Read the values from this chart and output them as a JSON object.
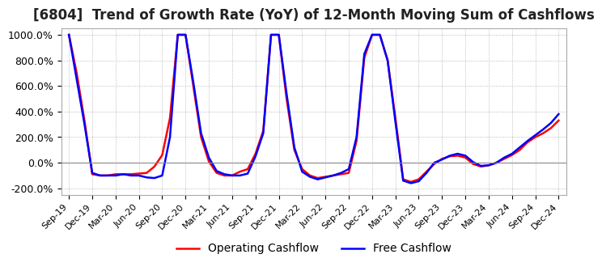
{
  "title": "[6804]  Trend of Growth Rate (YoY) of 12-Month Moving Sum of Cashflows",
  "title_fontsize": 12,
  "ylim": [
    -250,
    1050
  ],
  "yticks": [
    -200,
    0,
    200,
    400,
    600,
    800,
    1000
  ],
  "yticklabels": [
    "-200.0%",
    "0.0%",
    "200.0%",
    "400.0%",
    "600.0%",
    "800.0%",
    "1000.0%"
  ],
  "legend_labels": [
    "Operating Cashflow",
    "Free Cashflow"
  ],
  "legend_colors": [
    "#ff0000",
    "#0000ff"
  ],
  "line_width": 1.8,
  "background_color": "#ffffff",
  "grid_color": "#aaaaaa",
  "x_tick_labels": [
    "Sep-19",
    "Dec-19",
    "Mar-20",
    "Jun-20",
    "Sep-20",
    "Dec-20",
    "Mar-21",
    "Jun-21",
    "Sep-21",
    "Dec-21",
    "Mar-22",
    "Jun-22",
    "Sep-22",
    "Dec-22",
    "Mar-23",
    "Jun-23",
    "Sep-23",
    "Dec-23",
    "Mar-24",
    "Jun-24",
    "Sep-24",
    "Dec-24"
  ],
  "x_tick_positions": [
    0,
    3,
    6,
    9,
    12,
    15,
    18,
    21,
    24,
    27,
    30,
    33,
    36,
    39,
    42,
    45,
    48,
    51,
    54,
    57,
    60,
    63
  ],
  "operating_cashflow": [
    1000,
    700,
    330,
    -90,
    -100,
    -100,
    -90,
    -90,
    -90,
    -85,
    -80,
    -30,
    60,
    350,
    1000,
    1000,
    600,
    200,
    10,
    -80,
    -100,
    -100,
    -70,
    -50,
    70,
    250,
    1000,
    1000,
    500,
    100,
    -50,
    -100,
    -120,
    -110,
    -100,
    -90,
    -80,
    170,
    820,
    1000,
    1000,
    800,
    350,
    -130,
    -150,
    -130,
    -70,
    -10,
    30,
    50,
    55,
    40,
    -10,
    -30,
    -20,
    0,
    30,
    60,
    100,
    160,
    200,
    230,
    270,
    330
  ],
  "free_cashflow": [
    1000,
    650,
    300,
    -80,
    -100,
    -100,
    -100,
    -90,
    -100,
    -100,
    -115,
    -120,
    -100,
    200,
    1000,
    1000,
    630,
    230,
    40,
    -65,
    -90,
    -100,
    -100,
    -85,
    50,
    230,
    1000,
    1000,
    540,
    120,
    -70,
    -110,
    -130,
    -115,
    -100,
    -80,
    -50,
    200,
    850,
    1000,
    1000,
    800,
    320,
    -140,
    -160,
    -145,
    -80,
    0,
    25,
    55,
    70,
    55,
    5,
    -25,
    -20,
    0,
    40,
    70,
    120,
    170,
    215,
    260,
    310,
    380
  ]
}
